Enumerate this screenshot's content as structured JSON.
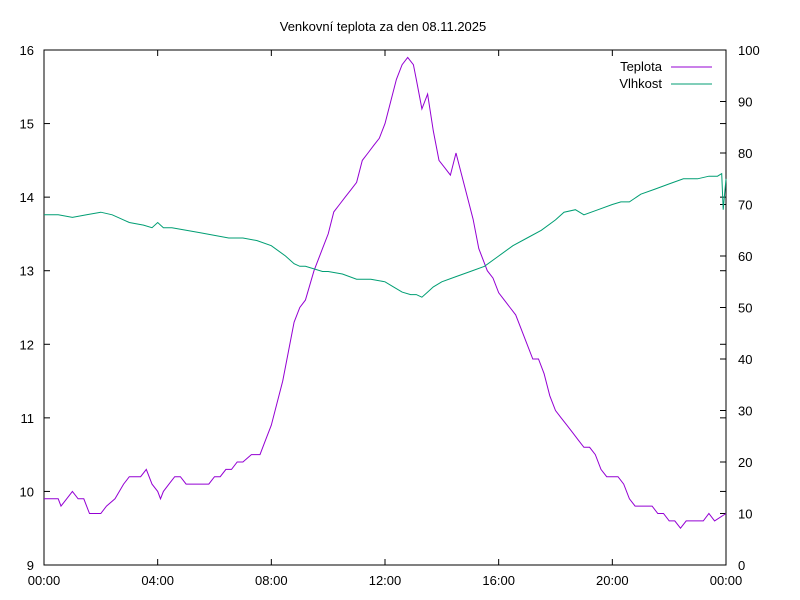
{
  "chart_data": {
    "type": "line",
    "title": "Venkovní teplota za den 08.11.2025",
    "xlabel": "",
    "ylabel": "",
    "y2label": "",
    "x_tick_labels": [
      "00:00",
      "04:00",
      "08:00",
      "12:00",
      "16:00",
      "20:00",
      "00:00"
    ],
    "x_range_hours": [
      0,
      24
    ],
    "ylim": [
      9,
      16
    ],
    "y_ticks": [
      9,
      10,
      11,
      12,
      13,
      14,
      15,
      16
    ],
    "y2lim": [
      0,
      100
    ],
    "y2_ticks": [
      0,
      10,
      20,
      30,
      40,
      50,
      60,
      70,
      80,
      90,
      100
    ],
    "grid": false,
    "legend_position": "top-right",
    "series": [
      {
        "name": "Teplota",
        "axis": "left",
        "color": "#9400d3",
        "x": [
          0,
          0.5,
          0.6,
          0.8,
          1.0,
          1.2,
          1.4,
          1.5,
          1.6,
          2.0,
          2.2,
          2.5,
          2.8,
          3.0,
          3.2,
          3.4,
          3.6,
          3.8,
          4.0,
          4.1,
          4.2,
          4.4,
          4.6,
          4.8,
          5.0,
          5.4,
          5.8,
          6.0,
          6.2,
          6.4,
          6.6,
          6.8,
          7.0,
          7.3,
          7.6,
          7.8,
          8.0,
          8.2,
          8.4,
          8.6,
          8.8,
          9.0,
          9.2,
          9.5,
          9.8,
          10.0,
          10.2,
          10.4,
          10.6,
          10.8,
          11.0,
          11.2,
          11.4,
          11.6,
          11.8,
          12.0,
          12.2,
          12.4,
          12.6,
          12.8,
          13.0,
          13.1,
          13.3,
          13.5,
          13.7,
          13.9,
          14.1,
          14.3,
          14.5,
          14.7,
          14.9,
          15.1,
          15.3,
          15.6,
          15.8,
          16.0,
          16.2,
          16.4,
          16.6,
          16.8,
          17.0,
          17.2,
          17.4,
          17.6,
          17.8,
          18.0,
          18.2,
          18.4,
          18.6,
          18.8,
          19.0,
          19.2,
          19.4,
          19.6,
          19.8,
          20.0,
          20.2,
          20.4,
          20.6,
          20.8,
          21.0,
          21.2,
          21.4,
          21.6,
          21.8,
          22.0,
          22.2,
          22.4,
          22.6,
          22.8,
          23.0,
          23.2,
          23.4,
          23.6,
          24.0
        ],
        "values": [
          9.9,
          9.9,
          9.8,
          9.9,
          10.0,
          9.9,
          9.9,
          9.8,
          9.7,
          9.7,
          9.8,
          9.9,
          10.1,
          10.2,
          10.2,
          10.2,
          10.3,
          10.1,
          10.0,
          9.9,
          10.0,
          10.1,
          10.2,
          10.2,
          10.1,
          10.1,
          10.1,
          10.2,
          10.2,
          10.3,
          10.3,
          10.4,
          10.4,
          10.5,
          10.5,
          10.7,
          10.9,
          11.2,
          11.5,
          11.9,
          12.3,
          12.5,
          12.6,
          13.0,
          13.3,
          13.5,
          13.8,
          13.9,
          14.0,
          14.1,
          14.2,
          14.5,
          14.6,
          14.7,
          14.8,
          15.0,
          15.3,
          15.6,
          15.8,
          15.9,
          15.8,
          15.6,
          15.2,
          15.4,
          14.9,
          14.5,
          14.4,
          14.3,
          14.6,
          14.3,
          14.0,
          13.7,
          13.3,
          13.0,
          12.9,
          12.7,
          12.6,
          12.5,
          12.4,
          12.2,
          12.0,
          11.8,
          11.8,
          11.6,
          11.3,
          11.1,
          11.0,
          10.9,
          10.8,
          10.7,
          10.6,
          10.6,
          10.5,
          10.3,
          10.2,
          10.2,
          10.2,
          10.1,
          9.9,
          9.8,
          9.8,
          9.8,
          9.8,
          9.7,
          9.7,
          9.6,
          9.6,
          9.5,
          9.6,
          9.6,
          9.6,
          9.6,
          9.7,
          9.6,
          9.7
        ]
      },
      {
        "name": "Vlhkost",
        "axis": "right",
        "color": "#009e73",
        "x": [
          0,
          0.5,
          1.0,
          1.5,
          2.0,
          2.4,
          2.8,
          3.0,
          3.5,
          3.8,
          4.0,
          4.2,
          4.5,
          5.0,
          5.5,
          6.0,
          6.5,
          7.0,
          7.5,
          8.0,
          8.5,
          8.8,
          9.0,
          9.2,
          9.5,
          9.8,
          10.0,
          10.5,
          11.0,
          11.5,
          12.0,
          12.3,
          12.6,
          12.9,
          13.1,
          13.3,
          13.5,
          13.7,
          14.0,
          14.5,
          15.0,
          15.5,
          16.0,
          16.5,
          17.0,
          17.5,
          18.0,
          18.3,
          18.7,
          19.0,
          19.5,
          20.0,
          20.3,
          20.6,
          21.0,
          21.5,
          22.0,
          22.5,
          23.0,
          23.4,
          23.7,
          23.85,
          23.9,
          23.95,
          24.0
        ],
        "values": [
          68,
          68,
          67.5,
          68,
          68.5,
          68,
          67,
          66.5,
          66,
          65.5,
          66.5,
          65.5,
          65.5,
          65,
          64.5,
          64,
          63.5,
          63.5,
          63,
          62,
          60,
          58.5,
          58,
          58,
          57.5,
          57,
          57,
          56.5,
          55.5,
          55.5,
          55,
          54,
          53,
          52.5,
          52.5,
          52,
          53,
          54,
          55,
          56,
          57,
          58,
          60,
          62,
          63.5,
          65,
          67,
          68.5,
          69,
          68,
          69,
          70,
          70.5,
          70.5,
          72,
          73,
          74,
          75,
          75,
          75.5,
          75.5,
          76,
          69,
          72,
          75
        ]
      }
    ]
  }
}
